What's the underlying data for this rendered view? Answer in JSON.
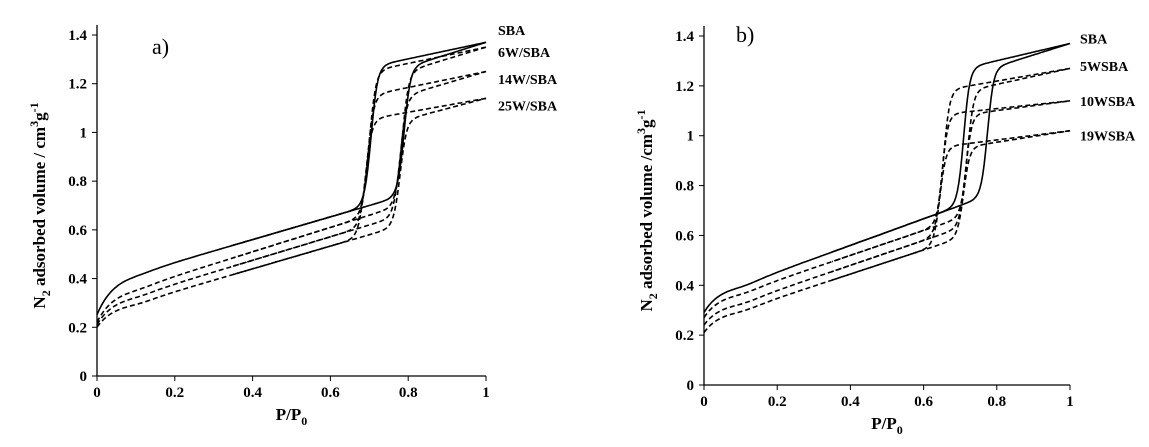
{
  "chart_data": [
    {
      "type": "line",
      "panel_label": "a)",
      "xlabel": {
        "main": "P/P",
        "sub": "0"
      },
      "ylabel": {
        "n": "N",
        "n_sub": "2",
        "mid": " adsorbed volume / cm",
        "cm_sup": "3",
        "g": "g",
        "g_sup": "-1"
      },
      "xlim": [
        0,
        1
      ],
      "ylim": [
        0,
        1.4
      ],
      "x_ticks": [
        "0",
        "0.2",
        "0.4",
        "0.6",
        "0.8",
        "1"
      ],
      "y_ticks": [
        "0",
        "0.2",
        "0.4",
        "0.6",
        "0.8",
        "1",
        "1.2",
        "1.4"
      ],
      "grid": false,
      "series": [
        {
          "name": "SBA",
          "style": "solid",
          "v0": 0.25,
          "vlow": 0.42,
          "vpre": 0.7,
          "plateau": 1.28,
          "vend": 1.37,
          "x_ads": 0.79,
          "x_des": 0.705,
          "label_y": 1.42,
          "points": [
            [
              0,
              0.25
            ],
            [
              0.1,
              0.42
            ],
            [
              0.4,
              0.55
            ],
            [
              0.7,
              0.7
            ],
            [
              0.75,
              0.76
            ],
            [
              0.79,
              1.25
            ],
            [
              0.83,
              1.3
            ],
            [
              0.9,
              1.33
            ],
            [
              1.0,
              1.37
            ]
          ]
        },
        {
          "name": "6W/SBA",
          "style": "dashed",
          "v0": 0.22,
          "vlow": 0.36,
          "vpre": 0.66,
          "plateau": 1.26,
          "vend": 1.35,
          "x_ads": 0.785,
          "x_des": 0.7,
          "label_y": 1.33,
          "points": [
            [
              0,
              0.22
            ],
            [
              0.1,
              0.36
            ],
            [
              0.4,
              0.49
            ],
            [
              0.7,
              0.66
            ],
            [
              0.785,
              1.2
            ],
            [
              0.83,
              1.28
            ],
            [
              1.0,
              1.35
            ]
          ]
        },
        {
          "name": "14W/SBA",
          "style": "dashed",
          "v0": 0.21,
          "vlow": 0.33,
          "vpre": 0.62,
          "plateau": 1.16,
          "vend": 1.25,
          "x_ads": 0.78,
          "x_des": 0.695,
          "label_y": 1.22,
          "points": [
            [
              0,
              0.21
            ],
            [
              0.1,
              0.33
            ],
            [
              0.4,
              0.46
            ],
            [
              0.7,
              0.62
            ],
            [
              0.78,
              1.1
            ],
            [
              0.83,
              1.17
            ],
            [
              1.0,
              1.25
            ]
          ]
        },
        {
          "name": "25W/SBA",
          "style": "dashed",
          "v0": 0.2,
          "vlow": 0.3,
          "vpre": 0.58,
          "plateau": 1.06,
          "vend": 1.14,
          "x_ads": 0.78,
          "x_des": 0.69,
          "label_y": 1.11,
          "points": [
            [
              0,
              0.2
            ],
            [
              0.1,
              0.3
            ],
            [
              0.4,
              0.42
            ],
            [
              0.7,
              0.58
            ],
            [
              0.78,
              1.0
            ],
            [
              0.83,
              1.07
            ],
            [
              1.0,
              1.14
            ]
          ]
        }
      ]
    },
    {
      "type": "line",
      "panel_label": "b)",
      "xlabel": {
        "main": "P/P",
        "sub": "0"
      },
      "ylabel": {
        "n": "N",
        "n_sub": "2",
        "mid": " adsorbed volume /cm",
        "cm_sup": "3",
        "g": "g",
        "g_sup": "-1"
      },
      "xlim": [
        0,
        1
      ],
      "ylim": [
        0,
        1.4
      ],
      "x_ticks": [
        "0",
        "0.2",
        "0.4",
        "0.6",
        "0.8",
        "1"
      ],
      "y_ticks": [
        "0",
        "0.2",
        "0.4",
        "0.6",
        "0.8",
        "1",
        "1.2",
        "1.4"
      ],
      "grid": false,
      "series": [
        {
          "name": "SBA",
          "style": "solid",
          "v0": 0.29,
          "vlow": 0.4,
          "vpre": 0.72,
          "plateau": 1.28,
          "vend": 1.37,
          "x_ads": 0.775,
          "x_des": 0.71,
          "label_y": 1.39,
          "points": [
            [
              0,
              0.29
            ],
            [
              0.1,
              0.4
            ],
            [
              0.4,
              0.52
            ],
            [
              0.7,
              0.72
            ],
            [
              0.775,
              1.2
            ],
            [
              0.83,
              1.3
            ],
            [
              1.0,
              1.37
            ]
          ]
        },
        {
          "name": "5WSBA",
          "style": "dashed",
          "v0": 0.27,
          "vlow": 0.37,
          "vpre": 0.67,
          "plateau": 1.19,
          "vend": 1.27,
          "x_ads": 0.72,
          "x_des": 0.655,
          "label_y": 1.28,
          "points": [
            [
              0,
              0.27
            ],
            [
              0.1,
              0.37
            ],
            [
              0.4,
              0.48
            ],
            [
              0.65,
              0.67
            ],
            [
              0.72,
              1.15
            ],
            [
              0.78,
              1.2
            ],
            [
              1.0,
              1.27
            ]
          ]
        },
        {
          "name": "10WSBA",
          "style": "dashed",
          "v0": 0.24,
          "vlow": 0.33,
          "vpre": 0.63,
          "plateau": 1.09,
          "vend": 1.14,
          "x_ads": 0.715,
          "x_des": 0.65,
          "label_y": 1.14,
          "points": [
            [
              0,
              0.24
            ],
            [
              0.1,
              0.33
            ],
            [
              0.4,
              0.45
            ],
            [
              0.65,
              0.63
            ],
            [
              0.715,
              1.05
            ],
            [
              0.78,
              1.09
            ],
            [
              1.0,
              1.14
            ]
          ]
        },
        {
          "name": "19WSBA",
          "style": "dashed",
          "v0": 0.21,
          "vlow": 0.3,
          "vpre": 0.59,
          "plateau": 0.96,
          "vend": 1.02,
          "x_ads": 0.71,
          "x_des": 0.645,
          "label_y": 1.0,
          "points": [
            [
              0,
              0.21
            ],
            [
              0.1,
              0.3
            ],
            [
              0.4,
              0.42
            ],
            [
              0.65,
              0.59
            ],
            [
              0.71,
              0.92
            ],
            [
              0.78,
              0.97
            ],
            [
              1.0,
              1.02
            ]
          ]
        }
      ]
    }
  ]
}
